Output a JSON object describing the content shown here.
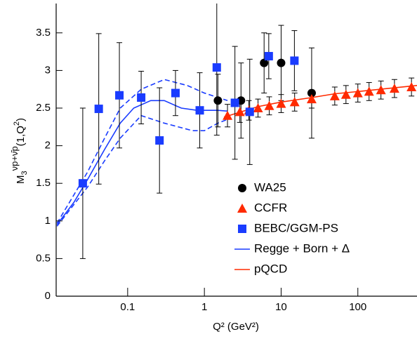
{
  "chart_data": {
    "type": "scatter",
    "xlabel": "Q² (GeV²)",
    "ylabel": [
      "M",
      "3",
      "νp+ν̄p",
      "(1,Q",
      "2",
      ")"
    ],
    "xscale": "log",
    "xlim": [
      0.0117,
      590
    ],
    "ylim": [
      0,
      3.89
    ],
    "xticks": [
      0.1,
      1,
      10,
      100
    ],
    "yticks": [
      0,
      0.5,
      1,
      1.5,
      2,
      2.5,
      3,
      3.5
    ],
    "legend": "lower right",
    "series": [
      {
        "name": "WA25",
        "color": "#000000",
        "marker": "circle",
        "x": [
          1.5,
          3.0,
          6.0,
          10,
          25
        ],
        "values": [
          2.6,
          2.6,
          3.1,
          3.1,
          2.7
        ],
        "errors": [
          0.35,
          0.5,
          0.4,
          0.5,
          0.6
        ]
      },
      {
        "name": "CCFR",
        "color": "#ff2a00",
        "marker": "triangle",
        "x": [
          2.0,
          2.9,
          3.8,
          5,
          7,
          10,
          15,
          25,
          50,
          70,
          100,
          140,
          200,
          300,
          500
        ],
        "values": [
          2.4,
          2.45,
          2.47,
          2.5,
          2.53,
          2.56,
          2.58,
          2.62,
          2.66,
          2.68,
          2.7,
          2.72,
          2.74,
          2.76,
          2.78
        ],
        "errors": [
          0.15,
          0.14,
          0.13,
          0.12,
          0.12,
          0.12,
          0.12,
          0.12,
          0.12,
          0.12,
          0.12,
          0.12,
          0.12,
          0.12,
          0.12
        ]
      },
      {
        "name": "BEBC/GGM-PS",
        "color": "#1a3cff",
        "marker": "square",
        "x": [
          0.026,
          0.042,
          0.078,
          0.15,
          0.26,
          0.42,
          0.87,
          1.45,
          2.5,
          3.9,
          6.9,
          14.9
        ],
        "values": [
          1.5,
          2.49,
          2.67,
          2.64,
          2.07,
          2.7,
          2.47,
          3.04,
          2.57,
          2.45,
          3.19,
          3.13
        ],
        "errors": [
          1.0,
          1.0,
          0.7,
          0.35,
          0.7,
          0.3,
          0.5,
          0.9,
          0.75,
          0.7,
          0.3,
          0.4
        ]
      },
      {
        "name": "Regge + Born + Δ",
        "color": "#1a3cff",
        "line": "solid",
        "x": [
          0.012,
          0.02,
          0.03,
          0.05,
          0.08,
          0.12,
          0.2,
          0.3,
          0.5,
          0.8,
          1.5,
          2
        ],
        "values": [
          0.95,
          1.25,
          1.55,
          1.95,
          2.3,
          2.5,
          2.6,
          2.6,
          2.5,
          2.47,
          2.47,
          2.46
        ]
      },
      {
        "color": "#1a3cff",
        "line": "dashed",
        "x": [
          0.012,
          0.03,
          0.05,
          0.08,
          0.15,
          0.3,
          0.6,
          1,
          2
        ],
        "values": [
          0.97,
          1.65,
          2.1,
          2.5,
          2.75,
          2.88,
          2.8,
          2.7,
          2.6
        ]
      },
      {
        "color": "#1a3cff",
        "line": "dashed",
        "x": [
          0.012,
          0.03,
          0.05,
          0.08,
          0.15,
          0.3,
          0.7,
          1,
          1.5,
          2
        ],
        "values": [
          0.93,
          1.45,
          1.8,
          2.1,
          2.4,
          2.3,
          2.2,
          2.2,
          2.3,
          2.35
        ]
      },
      {
        "name": "pQCD",
        "color": "#ff2a00",
        "line": "solid",
        "x": [
          1.8,
          3,
          5,
          10,
          25,
          50,
          100,
          300,
          590
        ],
        "values": [
          2.38,
          2.45,
          2.52,
          2.58,
          2.64,
          2.69,
          2.72,
          2.77,
          2.8
        ]
      }
    ]
  }
}
